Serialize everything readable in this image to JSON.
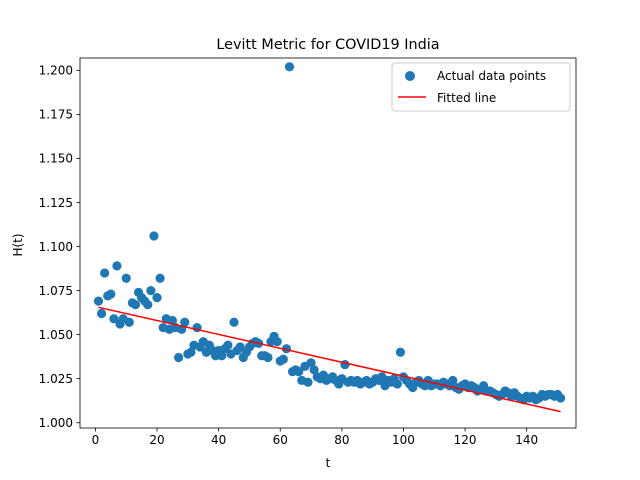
{
  "chart_data": {
    "type": "scatter",
    "title": "Levitt Metric for COVID19 India",
    "xlabel": "t",
    "ylabel": "H(t)",
    "xlim": [
      -5,
      156
    ],
    "ylim": [
      0.997,
      1.207
    ],
    "xticks": [
      0,
      20,
      40,
      60,
      80,
      100,
      120,
      140
    ],
    "yticks": [
      1.0,
      1.025,
      1.05,
      1.075,
      1.1,
      1.125,
      1.15,
      1.175,
      1.2
    ],
    "ytick_labels": [
      "1.000",
      "1.025",
      "1.050",
      "1.075",
      "1.100",
      "1.125",
      "1.150",
      "1.175",
      "1.200"
    ],
    "grid": false,
    "legend": {
      "position": "top-right",
      "entries": [
        "Actual data points",
        "Fitted line"
      ]
    },
    "colors": {
      "points": "#1f77b4",
      "line": "#ff0000"
    },
    "series": [
      {
        "name": "Actual data points",
        "kind": "scatter",
        "points": [
          [
            1,
            1.069
          ],
          [
            2,
            1.062
          ],
          [
            3,
            1.085
          ],
          [
            4,
            1.072
          ],
          [
            5,
            1.073
          ],
          [
            6,
            1.059
          ],
          [
            7,
            1.089
          ],
          [
            8,
            1.056
          ],
          [
            9,
            1.059
          ],
          [
            10,
            1.082
          ],
          [
            11,
            1.057
          ],
          [
            12,
            1.068
          ],
          [
            13,
            1.067
          ],
          [
            14,
            1.074
          ],
          [
            15,
            1.071
          ],
          [
            16,
            1.069
          ],
          [
            17,
            1.067
          ],
          [
            18,
            1.075
          ],
          [
            19,
            1.106
          ],
          [
            20,
            1.071
          ],
          [
            21,
            1.082
          ],
          [
            22,
            1.054
          ],
          [
            23,
            1.059
          ],
          [
            24,
            1.053
          ],
          [
            25,
            1.058
          ],
          [
            26,
            1.054
          ],
          [
            27,
            1.037
          ],
          [
            28,
            1.053
          ],
          [
            29,
            1.057
          ],
          [
            30,
            1.039
          ],
          [
            31,
            1.04
          ],
          [
            32,
            1.044
          ],
          [
            33,
            1.054
          ],
          [
            34,
            1.043
          ],
          [
            35,
            1.046
          ],
          [
            36,
            1.04
          ],
          [
            37,
            1.044
          ],
          [
            38,
            1.041
          ],
          [
            39,
            1.038
          ],
          [
            40,
            1.041
          ],
          [
            41,
            1.038
          ],
          [
            42,
            1.042
          ],
          [
            43,
            1.044
          ],
          [
            44,
            1.039
          ],
          [
            45,
            1.057
          ],
          [
            46,
            1.041
          ],
          [
            47,
            1.043
          ],
          [
            48,
            1.037
          ],
          [
            49,
            1.04
          ],
          [
            50,
            1.043
          ],
          [
            51,
            1.045
          ],
          [
            52,
            1.046
          ],
          [
            53,
            1.045
          ],
          [
            54,
            1.038
          ],
          [
            55,
            1.038
          ],
          [
            56,
            1.037
          ],
          [
            57,
            1.046
          ],
          [
            58,
            1.049
          ],
          [
            59,
            1.046
          ],
          [
            60,
            1.035
          ],
          [
            61,
            1.036
          ],
          [
            62,
            1.042
          ],
          [
            63,
            1.202
          ],
          [
            64,
            1.029
          ],
          [
            65,
            1.03
          ],
          [
            66,
            1.029
          ],
          [
            67,
            1.024
          ],
          [
            68,
            1.032
          ],
          [
            69,
            1.023
          ],
          [
            70,
            1.034
          ],
          [
            71,
            1.03
          ],
          [
            72,
            1.026
          ],
          [
            73,
            1.025
          ],
          [
            74,
            1.027
          ],
          [
            75,
            1.024
          ],
          [
            76,
            1.025
          ],
          [
            77,
            1.026
          ],
          [
            78,
            1.024
          ],
          [
            79,
            1.022
          ],
          [
            80,
            1.025
          ],
          [
            81,
            1.033
          ],
          [
            82,
            1.023
          ],
          [
            83,
            1.024
          ],
          [
            84,
            1.023
          ],
          [
            85,
            1.024
          ],
          [
            86,
            1.022
          ],
          [
            87,
            1.023
          ],
          [
            88,
            1.024
          ],
          [
            89,
            1.022
          ],
          [
            90,
            1.023
          ],
          [
            91,
            1.025
          ],
          [
            92,
            1.024
          ],
          [
            93,
            1.026
          ],
          [
            94,
            1.021
          ],
          [
            95,
            1.024
          ],
          [
            96,
            1.023
          ],
          [
            97,
            1.025
          ],
          [
            98,
            1.022
          ],
          [
            99,
            1.04
          ],
          [
            100,
            1.026
          ],
          [
            101,
            1.024
          ],
          [
            102,
            1.022
          ],
          [
            103,
            1.02
          ],
          [
            104,
            1.023
          ],
          [
            105,
            1.024
          ],
          [
            106,
            1.022
          ],
          [
            107,
            1.021
          ],
          [
            108,
            1.024
          ],
          [
            109,
            1.021
          ],
          [
            110,
            1.022
          ],
          [
            111,
            1.022
          ],
          [
            112,
            1.021
          ],
          [
            113,
            1.023
          ],
          [
            114,
            1.022
          ],
          [
            115,
            1.021
          ],
          [
            116,
            1.024
          ],
          [
            117,
            1.02
          ],
          [
            118,
            1.019
          ],
          [
            119,
            1.021
          ],
          [
            120,
            1.022
          ],
          [
            121,
            1.02
          ],
          [
            122,
            1.021
          ],
          [
            123,
            1.02
          ],
          [
            124,
            1.018
          ],
          [
            125,
            1.019
          ],
          [
            126,
            1.021
          ],
          [
            127,
            1.018
          ],
          [
            128,
            1.018
          ],
          [
            129,
            1.017
          ],
          [
            130,
            1.016
          ],
          [
            131,
            1.015
          ],
          [
            132,
            1.016
          ],
          [
            133,
            1.018
          ],
          [
            134,
            1.017
          ],
          [
            135,
            1.015
          ],
          [
            136,
            1.017
          ],
          [
            137,
            1.015
          ],
          [
            138,
            1.014
          ],
          [
            139,
            1.013
          ],
          [
            140,
            1.015
          ],
          [
            141,
            1.014
          ],
          [
            142,
            1.015
          ],
          [
            143,
            1.013
          ],
          [
            144,
            1.014
          ],
          [
            145,
            1.016
          ],
          [
            146,
            1.015
          ],
          [
            147,
            1.016
          ],
          [
            148,
            1.016
          ],
          [
            149,
            1.015
          ],
          [
            150,
            1.016
          ],
          [
            151,
            1.014
          ]
        ]
      },
      {
        "name": "Fitted line",
        "kind": "line",
        "points": [
          [
            1,
            1.0655
          ],
          [
            151,
            1.0063
          ]
        ]
      }
    ]
  }
}
